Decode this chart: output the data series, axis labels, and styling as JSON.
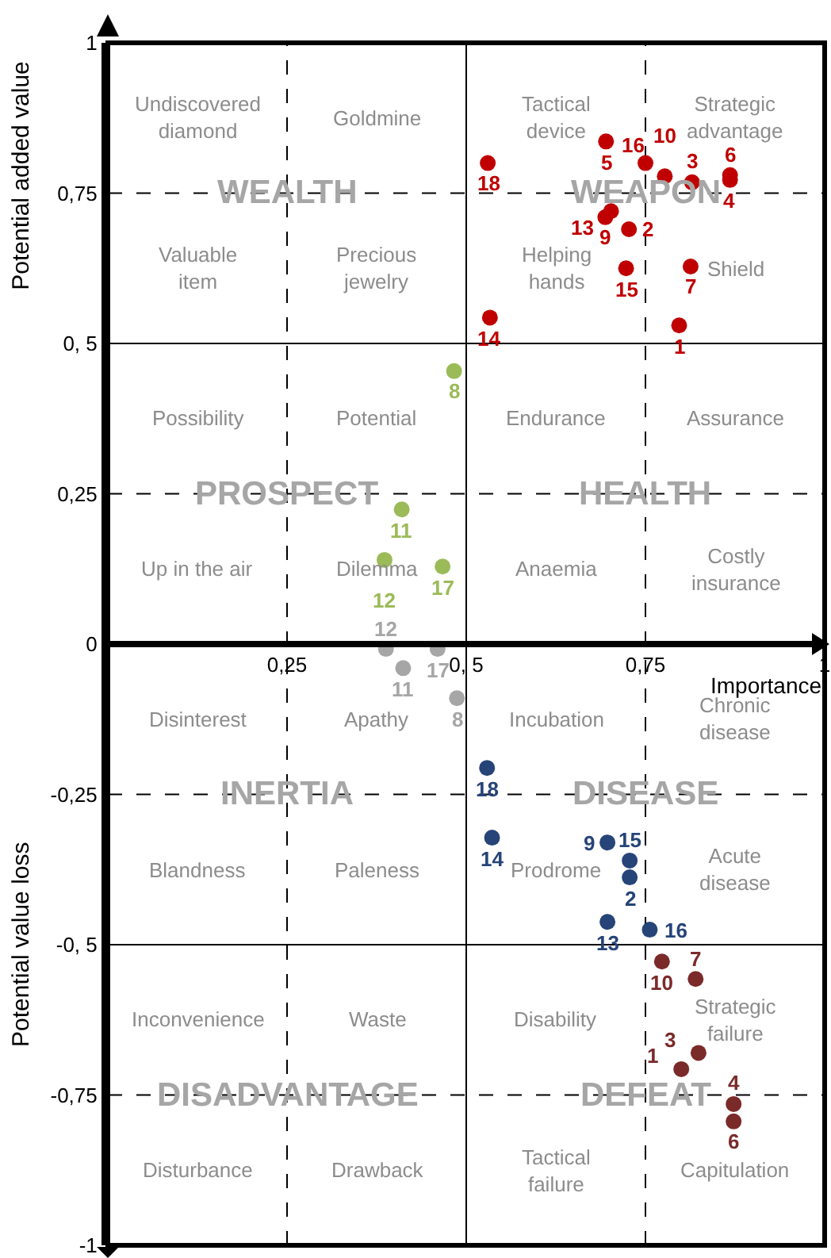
{
  "chart_data": {
    "type": "scatter",
    "xlabel": "Importance",
    "ylabel": "Potential added value",
    "xlim": [
      0,
      1
    ],
    "ylim": [
      -1,
      1
    ],
    "xticks": [
      {
        "value": 0.25,
        "label": "0,25"
      },
      {
        "value": 0.5,
        "label": "0, 5"
      },
      {
        "value": 0.75,
        "label": "0,75"
      },
      1
    ],
    "yticks": [
      {
        "value": -1,
        "label": "-1"
      },
      {
        "value": -0.75,
        "label": "-0,75"
      },
      {
        "value": -0.5,
        "label": "-0, 5"
      },
      {
        "value": -0.25,
        "label": "-0,25"
      },
      0,
      {
        "value": 0.25,
        "label": "0,25"
      },
      {
        "value": 0.5,
        "label": "0, 5"
      },
      {
        "value": 0.75,
        "label": "0,75"
      },
      1
    ],
    "marker": "circle",
    "ref_lines": [
      {
        "axis": "x",
        "value": 0.25,
        "line_style": "dashed"
      },
      {
        "axis": "x",
        "value": 0.5,
        "line_style": "solid"
      },
      {
        "axis": "x",
        "value": 0.75,
        "line_style": "dashed"
      },
      {
        "axis": "y",
        "value": 0.75,
        "line_style": "dashed"
      },
      {
        "axis": "y",
        "value": 0.5,
        "line_style": "solid"
      },
      {
        "axis": "y",
        "value": 0.25,
        "line_style": "dashed"
      },
      {
        "axis": "y",
        "value": -0.25,
        "line_style": "dashed"
      },
      {
        "axis": "y",
        "value": -0.5,
        "line_style": "solid"
      },
      {
        "axis": "y",
        "value": -0.75,
        "line_style": "dashed"
      }
    ],
    "series": [
      {
        "color": "#c00000",
        "x": [
          0.797,
          0.727,
          0.815,
          0.868,
          0.695,
          0.868,
          0.813,
          0.777,
          0.694,
          0.702,
          0.533,
          0.723,
          0.75,
          0.53
        ],
        "values": [
          0.53,
          0.69,
          0.768,
          0.772,
          0.836,
          0.78,
          0.628,
          0.778,
          0.71,
          0.72,
          0.543,
          0.625,
          0.8,
          0.8
        ]
      },
      {
        "color": "#9bbb59",
        "x": [
          0.483,
          0.41,
          0.386,
          0.467
        ],
        "values": [
          0.454,
          0.224,
          0.14,
          0.129
        ]
      },
      {
        "color": "#a6a6a6",
        "x": [
          0.487,
          0.412,
          0.388,
          0.46
        ],
        "values": [
          -0.09,
          -0.04,
          -0.008,
          -0.008
        ]
      },
      {
        "color": "#264478",
        "x": [
          0.529,
          0.536,
          0.697,
          0.728,
          0.728,
          0.697,
          0.756
        ],
        "values": [
          -0.206,
          -0.322,
          -0.33,
          -0.36,
          -0.388,
          -0.462,
          -0.475
        ]
      },
      {
        "color": "#7b2a2a",
        "x": [
          0.773,
          0.82,
          0.824,
          0.8,
          0.873,
          0.873
        ],
        "values": [
          -0.528,
          -0.557,
          -0.68,
          -0.707,
          -0.765,
          -0.794
        ]
      }
    ],
    "annotations": [
      "Undiscovered diamond",
      "Goldmine",
      "Tactical device",
      "Strategic advantage",
      "Valuable item",
      "Precious jewelry",
      "Helping hands",
      "Shield",
      "Possibility",
      "Potential",
      "Endurance",
      "Assurance",
      "Up in the air",
      "Dilemma",
      "Anaemia",
      "Costly insurance",
      "Disinterest",
      "Apathy",
      "Incubation",
      "Chronic disease",
      "Blandness",
      "Paleness",
      "Prodrome",
      "Acute disease",
      "Inconvenience",
      "Waste",
      "Disability",
      "Strategic failure",
      "Disturbance",
      "Drawback",
      "Tactical failure",
      "Capitulation",
      "WEALTH",
      "WEAPON",
      "PROSPECT",
      "HEALTH",
      "INERTIA",
      "DISEASE",
      "DISADVANTAGE",
      "DEFEAT",
      "Potential value loss",
      {
        "text": "1",
        "x": 0.797,
        "y": 0.53
      },
      {
        "text": "2",
        "x": 0.727,
        "y": 0.69
      },
      {
        "text": "3",
        "x": 0.815,
        "y": 0.768
      },
      {
        "text": "4",
        "x": 0.868,
        "y": 0.772
      },
      {
        "text": "5",
        "x": 0.695,
        "y": 0.836
      },
      {
        "text": "6",
        "x": 0.868,
        "y": 0.78
      },
      {
        "text": "7",
        "x": 0.813,
        "y": 0.628
      },
      {
        "text": "10",
        "x": 0.777,
        "y": 0.778
      },
      {
        "text": "9",
        "x": 0.694,
        "y": 0.71
      },
      {
        "text": "13",
        "x": 0.702,
        "y": 0.72
      },
      {
        "text": "14",
        "x": 0.533,
        "y": 0.543
      },
      {
        "text": "15",
        "x": 0.723,
        "y": 0.625
      },
      {
        "text": "16",
        "x": 0.75,
        "y": 0.8
      },
      {
        "text": "18",
        "x": 0.53,
        "y": 0.8
      },
      {
        "text": "8",
        "x": 0.483,
        "y": 0.454
      },
      {
        "text": "11",
        "x": 0.41,
        "y": 0.224
      },
      {
        "text": "12",
        "x": 0.386,
        "y": 0.14
      },
      {
        "text": "17",
        "x": 0.467,
        "y": 0.129
      },
      {
        "text": "8",
        "x": 0.487,
        "y": -0.09
      },
      {
        "text": "11",
        "x": 0.412,
        "y": -0.04
      },
      {
        "text": "12",
        "x": 0.388,
        "y": -0.008
      },
      {
        "text": "17",
        "x": 0.46,
        "y": -0.008
      },
      {
        "text": "18",
        "x": 0.529,
        "y": -0.206
      },
      {
        "text": "14",
        "x": 0.536,
        "y": -0.322
      },
      {
        "text": "9",
        "x": 0.697,
        "y": -0.33
      },
      {
        "text": "15",
        "x": 0.728,
        "y": -0.36
      },
      {
        "text": "2",
        "x": 0.728,
        "y": -0.388
      },
      {
        "text": "13",
        "x": 0.697,
        "y": -0.462
      },
      {
        "text": "16",
        "x": 0.756,
        "y": -0.475
      },
      {
        "text": "10",
        "x": 0.773,
        "y": -0.528
      },
      {
        "text": "7",
        "x": 0.82,
        "y": -0.557
      },
      {
        "text": "3",
        "x": 0.824,
        "y": -0.68
      },
      {
        "text": "1",
        "x": 0.8,
        "y": -0.707
      },
      {
        "text": "4",
        "x": 0.873,
        "y": -0.765
      },
      {
        "text": "6",
        "x": 0.873,
        "y": -0.794
      }
    ]
  }
}
